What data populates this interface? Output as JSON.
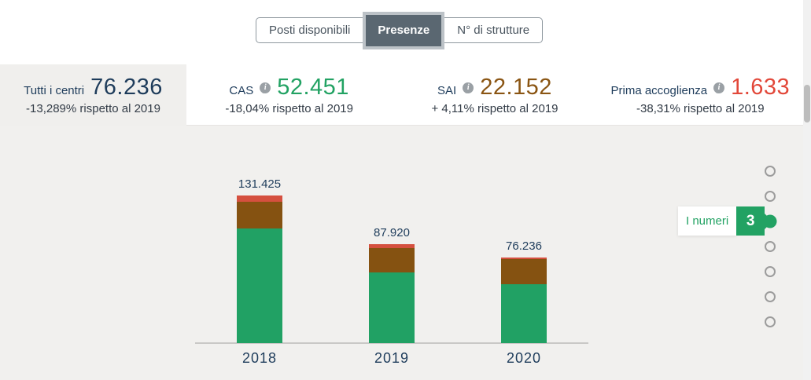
{
  "colors": {
    "accent_green": "#22a263",
    "navy": "#1e3c5b",
    "background": "#f1f0ee",
    "active_tab": "#5a6771"
  },
  "icons": {
    "info_glyph": "i"
  },
  "tabs": {
    "items": [
      {
        "label": "Posti disponibili",
        "active": false
      },
      {
        "label": "Presenze",
        "active": true
      },
      {
        "label": "N° di strutture",
        "active": false
      }
    ]
  },
  "stats": {
    "cards": [
      {
        "label": "Tutti i centri",
        "value": "76.236",
        "delta": "-13,289% rispetto al 2019",
        "color": "#1e3c5b",
        "has_info_icon": false,
        "selected": true
      },
      {
        "label": "CAS",
        "value": "52.451",
        "delta": "-18,04% rispetto al 2019",
        "color": "#22a263",
        "has_info_icon": true,
        "selected": false
      },
      {
        "label": "SAI",
        "value": "22.152",
        "delta": "+ 4,11% rispetto al 2019",
        "color": "#8a5513",
        "has_info_icon": true,
        "selected": false
      },
      {
        "label": "Prima accoglienza",
        "value": "1.633",
        "delta": "-38,31% rispetto al 2019",
        "color": "#e2483a",
        "has_info_icon": true,
        "selected": false
      }
    ]
  },
  "chart_data": {
    "type": "bar",
    "stacked": true,
    "title": "",
    "xlabel": "",
    "ylabel": "",
    "categories": [
      "2018",
      "2019",
      "2020"
    ],
    "totals": [
      131425,
      87920,
      76236
    ],
    "total_labels": [
      "131.425",
      "87.920",
      "76.236"
    ],
    "series": [
      {
        "name": "CAS",
        "color": "#21a164",
        "values": [
          102000,
          63220,
          52451
        ]
      },
      {
        "name": "SAI",
        "color": "#855211",
        "values": [
          23825,
          21300,
          22152
        ]
      },
      {
        "name": "Prima accoglienza",
        "color": "#d5503f",
        "values": [
          5600,
          3400,
          1633
        ]
      }
    ],
    "segment_values_estimated_for": [
      "2018",
      "2019"
    ],
    "ylim": [
      0,
      131425
    ],
    "grid": false,
    "legend": false
  },
  "pager": {
    "tooltip_label": "I numeri",
    "tooltip_number": "3",
    "dot_count": 7,
    "active_index": 2
  }
}
